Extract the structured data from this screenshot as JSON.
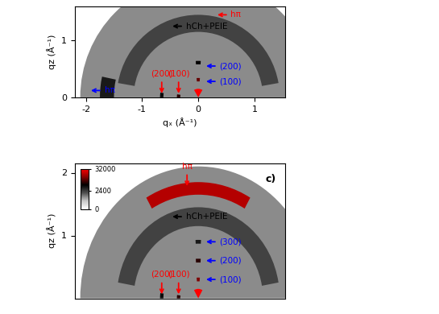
{
  "chart_data": [
    {
      "type": "heatmap",
      "xlabel": "qₓ (Å⁻¹)",
      "ylabel": "qz (Å⁻¹)",
      "xlim": [
        -2.2,
        1.55
      ],
      "xticks": [
        -2,
        -1,
        0,
        1
      ],
      "ylim": [
        0,
        1.6
      ],
      "yticks": [
        0,
        1
      ],
      "tick_labels": true,
      "features": [
        {
          "q_min": 0,
          "q_max": 2.1,
          "angle_min": 0,
          "angle_max": 180,
          "intensity": 600
        },
        {
          "q_min": 1.15,
          "q_max": 1.45,
          "angle_min": 10,
          "angle_max": 170,
          "intensity": 2000
        },
        {
          "q_min": 1.5,
          "q_max": 1.75,
          "angle_min": 168,
          "angle_max": 180,
          "intensity": 4000
        },
        {
          "q_min": 0.32,
          "q_max": 0.38,
          "angle_min": 172,
          "angle_max": 180,
          "intensity": 8000
        },
        {
          "q_min": 0.62,
          "q_max": 0.68,
          "angle_min": 173,
          "angle_max": 180,
          "intensity": 5000
        },
        {
          "q_min": 0.28,
          "q_max": 0.34,
          "angle_min": 85,
          "angle_max": 95,
          "intensity": 12000
        },
        {
          "q_min": 0.58,
          "q_max": 0.64,
          "angle_min": 86,
          "angle_max": 94,
          "intensity": 6000
        },
        {
          "q_min": 0,
          "q_max": 0.15,
          "angle_min": 60,
          "angle_max": 120,
          "intensity": 32000
        }
      ],
      "annotations": [
        {
          "text": "hCh+PEIE",
          "color": "black",
          "x": -0.5,
          "y": 1.25,
          "direction": "left"
        },
        {
          "text": "hπ",
          "color": "red",
          "x": 0.3,
          "y": 1.45,
          "direction": "left"
        },
        {
          "text": "(200)",
          "color": "red",
          "x": -0.65,
          "y": 0.03,
          "direction": "down"
        },
        {
          "text": "(100)",
          "color": "red",
          "x": -0.35,
          "y": 0.03,
          "direction": "down"
        },
        {
          "text": "(200)",
          "color": "blue",
          "x": 0.1,
          "y": 0.55,
          "direction": "left"
        },
        {
          "text": "(100)",
          "color": "blue",
          "x": 0.1,
          "y": 0.28,
          "direction": "left"
        },
        {
          "text": "hπ",
          "color": "blue",
          "x": -1.95,
          "y": 0.12,
          "direction": "left"
        }
      ]
    },
    {
      "type": "heatmap",
      "title": "c)",
      "ylabel": "qz (Å⁻¹)",
      "xlim": [
        -2.2,
        1.55
      ],
      "ylim": [
        0,
        2.15
      ],
      "yticks": [
        1,
        2
      ],
      "tick_labels": "y",
      "colorbar": {
        "lim": [
          0,
          32000
        ],
        "ticks": [
          0,
          2400,
          32000
        ]
      },
      "features": [
        {
          "q_min": 0,
          "q_max": 2.1,
          "angle_min": 0,
          "angle_max": 180,
          "intensity": 600
        },
        {
          "q_min": 1.15,
          "q_max": 1.45,
          "angle_min": 10,
          "angle_max": 170,
          "intensity": 2000
        },
        {
          "q_min": 1.65,
          "q_max": 1.85,
          "angle_min": 60,
          "angle_max": 120,
          "intensity": 20000
        },
        {
          "q_min": 0.27,
          "q_max": 0.33,
          "angle_min": 85,
          "angle_max": 95,
          "intensity": 14000
        },
        {
          "q_min": 0.57,
          "q_max": 0.63,
          "angle_min": 86,
          "angle_max": 94,
          "intensity": 8000
        },
        {
          "q_min": 0.87,
          "q_max": 0.93,
          "angle_min": 87,
          "angle_max": 93,
          "intensity": 4000
        },
        {
          "q_min": 0.32,
          "q_max": 0.38,
          "angle_min": 172,
          "angle_max": 180,
          "intensity": 8000
        },
        {
          "q_min": 0.62,
          "q_max": 0.68,
          "angle_min": 173,
          "angle_max": 180,
          "intensity": 5000
        },
        {
          "q_min": 0,
          "q_max": 0.15,
          "angle_min": 60,
          "angle_max": 120,
          "intensity": 32000
        }
      ],
      "annotations": [
        {
          "text": "hπ",
          "color": "red",
          "x": -0.2,
          "y": 1.75,
          "direction": "down"
        },
        {
          "text": "hCh+PEIE",
          "color": "black",
          "x": -0.5,
          "y": 1.3,
          "direction": "left"
        },
        {
          "text": "(300)",
          "color": "blue",
          "x": 0.1,
          "y": 0.9,
          "direction": "left"
        },
        {
          "text": "(200)",
          "color": "blue",
          "x": 0.1,
          "y": 0.6,
          "direction": "left"
        },
        {
          "text": "(100)",
          "color": "blue",
          "x": 0.1,
          "y": 0.3,
          "direction": "left"
        },
        {
          "text": "(200)",
          "color": "red",
          "x": -0.65,
          "y": 0.03,
          "direction": "down"
        },
        {
          "text": "(100)",
          "color": "red",
          "x": -0.35,
          "y": 0.03,
          "direction": "down"
        }
      ]
    }
  ]
}
